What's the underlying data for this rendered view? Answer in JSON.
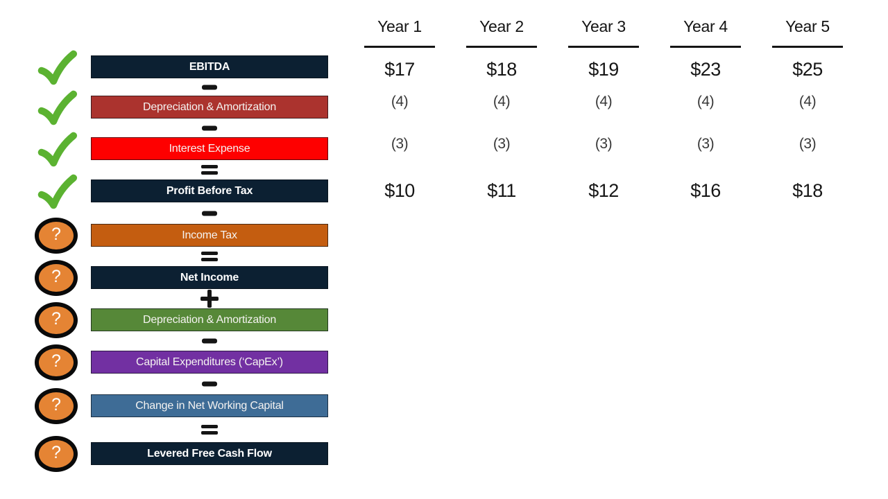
{
  "columns": [
    "Year 1",
    "Year 2",
    "Year 3",
    "Year 4",
    "Year 5"
  ],
  "glyphs": {
    "question": "?"
  },
  "colors": {
    "navy": "#0C2032",
    "brick_red": "#AB332E",
    "bright_red": "#FE0000",
    "orange": "#C45D10",
    "green": "#568838",
    "purple": "#7230A2",
    "steel_blue": "#3E6C96",
    "check_green": "#5BB231",
    "badge_orange": "#E58434",
    "badge_ring": "#0A0A0A",
    "text_dark": "#161616"
  },
  "rows": [
    {
      "label": "EBITDA",
      "color_key": "navy",
      "emphasis": true,
      "status": "complete",
      "icon": "check-icon",
      "op_before": null,
      "values": [
        "$17",
        "$18",
        "$19",
        "$23",
        "$25"
      ]
    },
    {
      "label": "Depreciation & Amortization",
      "color_key": "brick_red",
      "emphasis": false,
      "status": "complete",
      "icon": "check-icon",
      "op_before": "-",
      "values": [
        "(4)",
        "(4)",
        "(4)",
        "(4)",
        "(4)"
      ]
    },
    {
      "label": "Interest Expense",
      "color_key": "bright_red",
      "emphasis": false,
      "status": "complete",
      "icon": "check-icon",
      "op_before": "-",
      "values": [
        "(3)",
        "(3)",
        "(3)",
        "(3)",
        "(3)"
      ]
    },
    {
      "label": "Profit Before Tax",
      "color_key": "navy",
      "emphasis": true,
      "status": "complete",
      "icon": "check-icon",
      "op_before": "=",
      "values": [
        "$10",
        "$11",
        "$12",
        "$16",
        "$18"
      ]
    },
    {
      "label": "Income Tax",
      "color_key": "orange",
      "emphasis": false,
      "status": "todo",
      "icon": "question-icon",
      "op_before": "-",
      "values": []
    },
    {
      "label": "Net Income",
      "color_key": "navy",
      "emphasis": true,
      "status": "todo",
      "icon": "question-icon",
      "op_before": "=",
      "values": []
    },
    {
      "label": "Depreciation & Amortization",
      "color_key": "green",
      "emphasis": false,
      "status": "todo",
      "icon": "question-icon",
      "op_before": "+",
      "values": []
    },
    {
      "label": "Capital Expenditures (‘CapEx’)",
      "color_key": "purple",
      "emphasis": false,
      "status": "todo",
      "icon": "question-icon",
      "op_before": "-",
      "values": []
    },
    {
      "label": "Change in Net Working Capital",
      "color_key": "steel_blue",
      "emphasis": false,
      "status": "todo",
      "icon": "question-icon",
      "op_before": "-",
      "values": []
    },
    {
      "label": "Levered Free Cash Flow",
      "color_key": "navy",
      "emphasis": true,
      "status": "todo",
      "icon": "question-icon",
      "op_before": "=",
      "values": []
    }
  ]
}
